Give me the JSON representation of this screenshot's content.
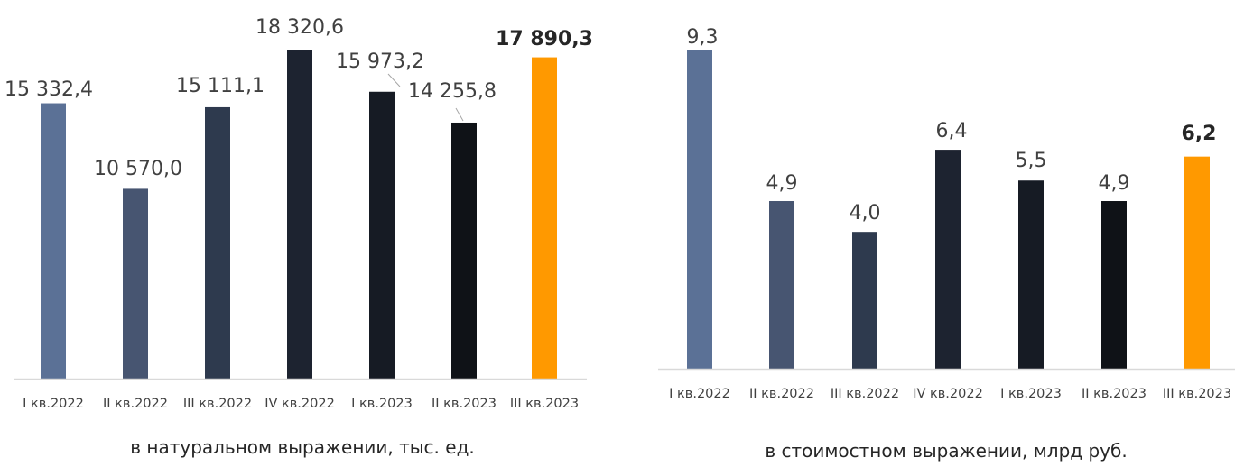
{
  "chart_data": [
    {
      "type": "bar",
      "categories": [
        "I кв.2022",
        "II кв.2022",
        "III кв.2022",
        "IV кв.2022",
        "I кв.2023",
        "II кв.2023",
        "III кв.2023"
      ],
      "values": [
        15332.4,
        10570.0,
        15111.1,
        18320.6,
        15973.2,
        14255.8,
        17890.3
      ],
      "data_labels": [
        "15 332,4",
        "10 570,0",
        "15 111,1",
        "18 320,6",
        "15 973,2",
        "14 255,8",
        "17 890,3"
      ],
      "caption": "в натуральном выражении, тыс. ед.",
      "highlight_index": 6,
      "colors": [
        "#5b7196",
        "#475571",
        "#2e3a4e",
        "#1d2330",
        "#161b24",
        "#0f1217",
        "#ff9900"
      ],
      "axis_line_color": "#d9d9d9",
      "ylim": [
        0,
        18320.6
      ],
      "grid": false
    },
    {
      "type": "bar",
      "categories": [
        "I кв.2022",
        "II кв.2022",
        "III кв.2022",
        "IV кв.2022",
        "I кв.2023",
        "II кв.2023",
        "III кв.2023"
      ],
      "values": [
        9.3,
        4.9,
        4.0,
        6.4,
        5.5,
        4.9,
        6.2
      ],
      "data_labels": [
        "9,3",
        "4,9",
        "4,0",
        "6,4",
        "5,5",
        "4,9",
        "6,2"
      ],
      "caption": "в стоимостном выражении, млрд руб.",
      "highlight_index": 6,
      "colors": [
        "#5b7196",
        "#475571",
        "#2e3a4e",
        "#1d2330",
        "#161b24",
        "#0f1217",
        "#ff9900"
      ],
      "axis_line_color": "#d9d9d9",
      "ylim": [
        0,
        9.3
      ],
      "grid": false
    }
  ]
}
